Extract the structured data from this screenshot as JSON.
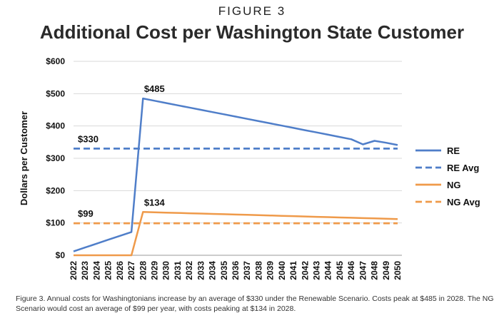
{
  "figure_label": "FIGURE 3",
  "caption": "Figure 3. Annual costs for Washingtonians increase by an average of $330 under the Renewable Scenario. Costs peak at $485 in 2028. The NG Scenario would cost an average of $99 per year, with costs peaking at $134 in 2028.",
  "colors": {
    "re": "#4f7ec9",
    "ng": "#ef9a4a",
    "grid": "#d9d9d9",
    "axis": "#999999"
  },
  "chart_data": {
    "type": "line",
    "title": "Additional Cost per Washington State Customer",
    "xlabel": "",
    "ylabel": "Dollars per Customer",
    "x": [
      "2022",
      "2023",
      "2024",
      "2025",
      "2026",
      "2027",
      "2028",
      "2029",
      "2030",
      "2031",
      "2032",
      "2033",
      "2034",
      "2035",
      "2036",
      "2037",
      "2038",
      "2039",
      "2040",
      "2041",
      "2042",
      "2043",
      "2044",
      "2045",
      "2046",
      "2047",
      "2048",
      "2049",
      "2050"
    ],
    "ylim": [
      0,
      600
    ],
    "yticks": [
      0,
      100,
      200,
      300,
      400,
      500,
      600
    ],
    "ytick_labels": [
      "$0",
      "$100",
      "$200",
      "$300",
      "$400",
      "$500",
      "$600"
    ],
    "grid": true,
    "legend_position": "right",
    "series": [
      {
        "name": "RE",
        "style": "solid",
        "color": "#4f7ec9",
        "values": [
          12,
          24,
          36,
          48,
          60,
          72,
          485,
          478,
          471,
          464,
          457,
          450,
          443,
          436,
          429,
          422,
          415,
          408,
          401,
          394,
          387,
          380,
          373,
          366,
          359,
          343,
          354,
          348,
          341
        ]
      },
      {
        "name": "RE Avg",
        "style": "dashed",
        "color": "#4f7ec9",
        "values": [
          330,
          330,
          330,
          330,
          330,
          330,
          330,
          330,
          330,
          330,
          330,
          330,
          330,
          330,
          330,
          330,
          330,
          330,
          330,
          330,
          330,
          330,
          330,
          330,
          330,
          330,
          330,
          330,
          330
        ]
      },
      {
        "name": "NG",
        "style": "solid",
        "color": "#ef9a4a",
        "values": [
          0,
          0,
          0,
          0,
          0,
          0,
          134,
          133,
          132,
          131,
          130,
          129,
          128,
          127,
          126,
          125,
          124,
          123,
          122,
          121,
          120,
          119,
          118,
          117,
          116,
          115,
          114,
          113,
          112
        ]
      },
      {
        "name": "NG Avg",
        "style": "dashed",
        "color": "#ef9a4a",
        "values": [
          99,
          99,
          99,
          99,
          99,
          99,
          99,
          99,
          99,
          99,
          99,
          99,
          99,
          99,
          99,
          99,
          99,
          99,
          99,
          99,
          99,
          99,
          99,
          99,
          99,
          99,
          99,
          99,
          99
        ]
      }
    ],
    "annotations": [
      {
        "text": "$485",
        "x": "2028",
        "y": 485
      },
      {
        "text": "$330",
        "x": "2022",
        "y": 330
      },
      {
        "text": "$134",
        "x": "2028",
        "y": 134
      },
      {
        "text": "$99",
        "x": "2022",
        "y": 99
      }
    ]
  }
}
